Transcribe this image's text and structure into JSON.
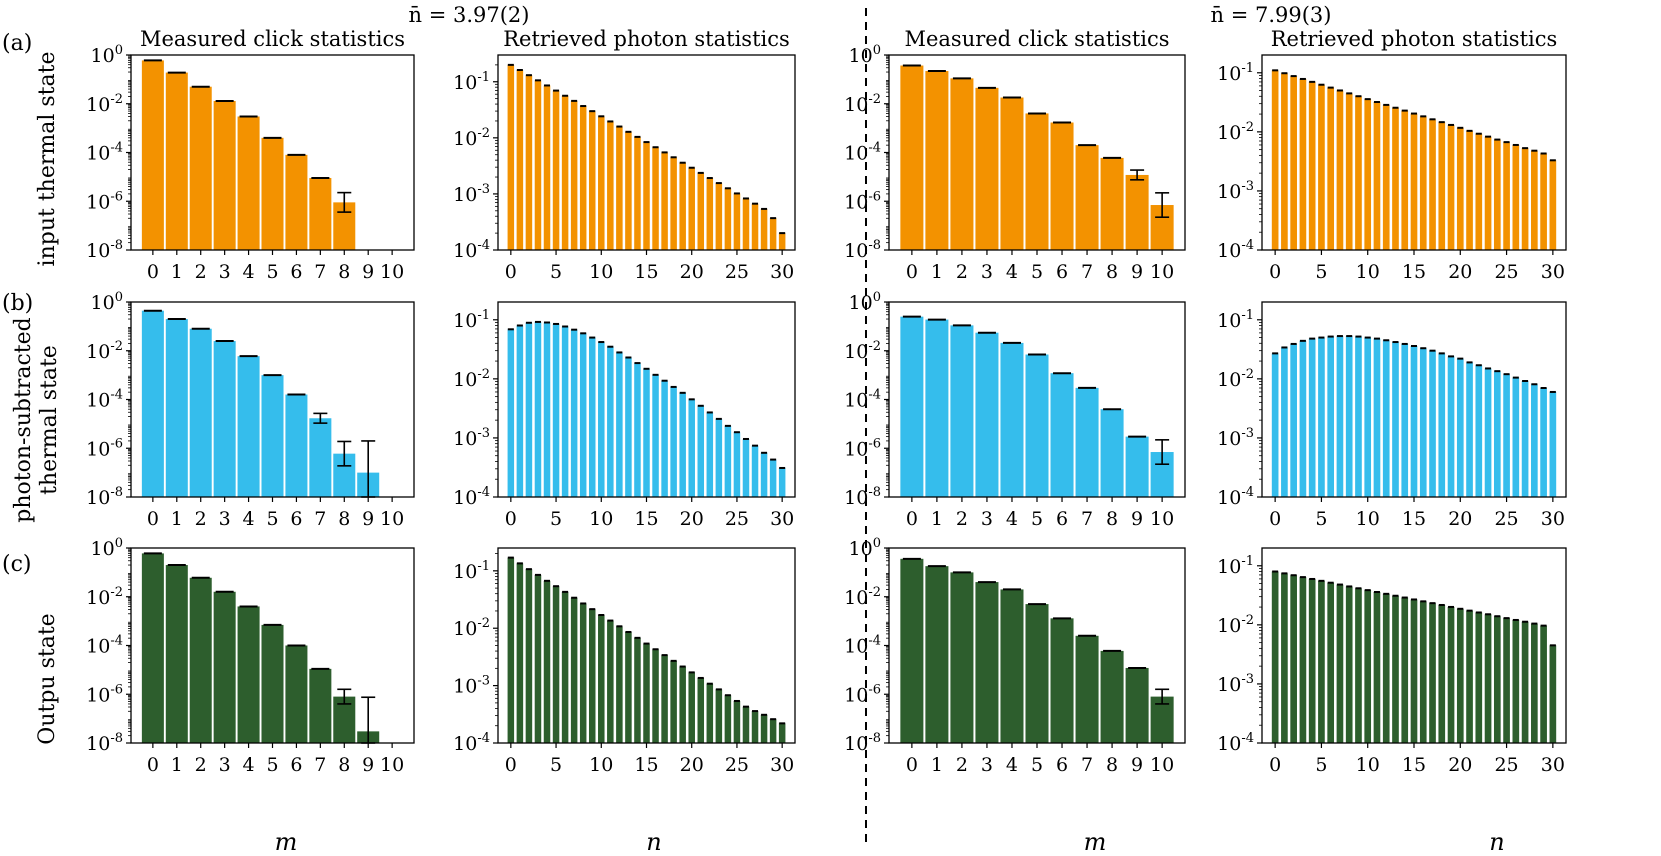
{
  "figure": {
    "top_titles": [
      "n̄ = 3.97(2)",
      "n̄ = 7.99(3)"
    ],
    "row_labels": [
      [
        "(a)"
      ],
      [
        "(b)"
      ],
      [
        "(c)"
      ]
    ],
    "ylabels": [
      [
        "input thermal state"
      ],
      [
        "photon-subtracted",
        "thermal state"
      ],
      [
        "Outpu state"
      ]
    ],
    "xlabels": [
      "m",
      "n",
      "m",
      "n"
    ],
    "colors": {
      "row0": "#F39200",
      "row1": "#35BDEC",
      "row2": "#2D5E2D"
    }
  },
  "chart_data": [
    {
      "id": "a-click-3.97",
      "type": "bar",
      "title": "Measured click statistics",
      "xlabel": "m",
      "ylabel": "input thermal state",
      "yscale": "log",
      "ylim": [
        1e-08,
        1
      ],
      "yticks": [
        1,
        0.01,
        0.0001,
        1e-06,
        1e-08
      ],
      "ytick_labels": [
        "10^0",
        "10^-2",
        "10^-4",
        "10^-6",
        "10^-8"
      ],
      "categories": [
        0,
        1,
        2,
        3,
        4,
        5,
        6,
        7,
        8,
        9,
        10
      ],
      "values": [
        0.6,
        0.19,
        0.05,
        0.013,
        0.003,
        0.0004,
        8e-05,
        9e-06,
        9e-07,
        null,
        null
      ],
      "errors": [
        0,
        0,
        0,
        0,
        0,
        0,
        0,
        0,
        0.4,
        0,
        0
      ]
    },
    {
      "id": "a-photon-3.97",
      "type": "bar",
      "title": "Retrieved photon statistics",
      "xlabel": "n",
      "yscale": "log",
      "ylim": [
        0.0001,
        0.3
      ],
      "yticks": [
        0.1,
        0.01,
        0.001,
        0.0001
      ],
      "ytick_labels": [
        "10^-1",
        "10^-2",
        "10^-3",
        "10^-4"
      ],
      "xticks": [
        0,
        5,
        10,
        15,
        20,
        25,
        30
      ],
      "categories": [
        0,
        1,
        2,
        3,
        4,
        5,
        6,
        7,
        8,
        9,
        10,
        11,
        12,
        13,
        14,
        15,
        16,
        17,
        18,
        19,
        20,
        21,
        22,
        23,
        24,
        25,
        26,
        27,
        28,
        29,
        30
      ],
      "values": [
        0.2,
        0.162,
        0.131,
        0.106,
        0.0859,
        0.0696,
        0.0563,
        0.0456,
        0.0369,
        0.0299,
        0.0242,
        0.0196,
        0.0159,
        0.0128,
        0.0104,
        0.0084,
        0.0068,
        0.0055,
        0.0045,
        0.0036,
        0.00293,
        0.00237,
        0.00192,
        0.00156,
        0.00126,
        0.00102,
        0.00083,
        0.00067,
        0.00054,
        0.00037,
        0.0002
      ]
    },
    {
      "id": "a-click-7.99",
      "type": "bar",
      "title": "Measured click statistics",
      "xlabel": "m",
      "yscale": "log",
      "ylim": [
        1e-08,
        1
      ],
      "yticks": [
        1,
        0.01,
        0.0001,
        1e-06,
        1e-08
      ],
      "ytick_labels": [
        "10^0",
        "10^-2",
        "10^-4",
        "10^-6",
        "10^-8"
      ],
      "categories": [
        0,
        1,
        2,
        3,
        4,
        5,
        6,
        7,
        8,
        9,
        10
      ],
      "values": [
        0.37,
        0.22,
        0.11,
        0.045,
        0.018,
        0.004,
        0.0017,
        0.0002,
        6e-05,
        1.2e-05,
        7e-07
      ],
      "errors": [
        0,
        0,
        0,
        0,
        0,
        0,
        0,
        0,
        0,
        0.2,
        0.5
      ]
    },
    {
      "id": "a-photon-7.99",
      "type": "bar",
      "title": "Retrieved photon statistics",
      "xlabel": "n",
      "yscale": "log",
      "ylim": [
        0.0001,
        0.2
      ],
      "yticks": [
        0.1,
        0.01,
        0.001,
        0.0001
      ],
      "ytick_labels": [
        "10^-1",
        "10^-2",
        "10^-3",
        "10^-4"
      ],
      "xticks": [
        0,
        5,
        10,
        15,
        20,
        25,
        30
      ],
      "categories": [
        0,
        1,
        2,
        3,
        4,
        5,
        6,
        7,
        8,
        9,
        10,
        11,
        12,
        13,
        14,
        15,
        16,
        17,
        18,
        19,
        20,
        21,
        22,
        23,
        24,
        25,
        26,
        27,
        28,
        29,
        30
      ],
      "values": [
        0.11,
        0.0983,
        0.0879,
        0.0786,
        0.0702,
        0.0628,
        0.0561,
        0.0502,
        0.0448,
        0.0401,
        0.0358,
        0.032,
        0.0286,
        0.0256,
        0.0229,
        0.0204,
        0.0183,
        0.0163,
        0.0146,
        0.0131,
        0.0117,
        0.0104,
        0.0093,
        0.0083,
        0.0074,
        0.0067,
        0.006,
        0.0053,
        0.0048,
        0.0043,
        0.0033
      ]
    },
    {
      "id": "b-click-3.97",
      "type": "bar",
      "title": "",
      "xlabel": "m",
      "ylabel": "photon-subtracted thermal state",
      "yscale": "log",
      "ylim": [
        1e-08,
        1
      ],
      "yticks": [
        1,
        0.01,
        0.0001,
        1e-06,
        1e-08
      ],
      "ytick_labels": [
        "10^0",
        "10^-2",
        "10^-4",
        "10^-6",
        "10^-8"
      ],
      "categories": [
        0,
        1,
        2,
        3,
        4,
        5,
        6,
        7,
        8,
        9,
        10
      ],
      "values": [
        0.44,
        0.2,
        0.08,
        0.025,
        0.006,
        0.001,
        0.00016,
        1.7e-05,
        6e-07,
        1e-07,
        null
      ],
      "errors": [
        0,
        0,
        0,
        0,
        0,
        0,
        0,
        0.2,
        0.5,
        1.3,
        0
      ]
    },
    {
      "id": "b-photon-3.97",
      "type": "bar",
      "title": "",
      "xlabel": "n",
      "yscale": "log",
      "ylim": [
        0.0001,
        0.2
      ],
      "yticks": [
        0.1,
        0.01,
        0.001,
        0.0001
      ],
      "ytick_labels": [
        "10^-1",
        "10^-2",
        "10^-3",
        "10^-4"
      ],
      "xticks": [
        0,
        5,
        10,
        15,
        20,
        25,
        30
      ],
      "categories": [
        0,
        1,
        2,
        3,
        4,
        5,
        6,
        7,
        8,
        9,
        10,
        11,
        12,
        13,
        14,
        15,
        16,
        17,
        18,
        19,
        20,
        21,
        22,
        23,
        24,
        25,
        26,
        27,
        28,
        29,
        30
      ],
      "values": [
        0.069,
        0.08,
        0.089,
        0.092,
        0.09,
        0.085,
        0.077,
        0.068,
        0.059,
        0.05,
        0.042,
        0.035,
        0.028,
        0.023,
        0.0185,
        0.0148,
        0.0117,
        0.0093,
        0.0073,
        0.0058,
        0.0045,
        0.0035,
        0.0027,
        0.0021,
        0.0016,
        0.00125,
        0.00096,
        0.00074,
        0.00056,
        0.00043,
        0.00031
      ]
    },
    {
      "id": "b-click-7.99",
      "type": "bar",
      "title": "",
      "xlabel": "m",
      "yscale": "log",
      "ylim": [
        1e-08,
        1
      ],
      "yticks": [
        1,
        0.01,
        0.0001,
        1e-06,
        1e-08
      ],
      "ytick_labels": [
        "10^0",
        "10^-2",
        "10^-4",
        "10^-6",
        "10^-8"
      ],
      "categories": [
        0,
        1,
        2,
        3,
        4,
        5,
        6,
        7,
        8,
        9,
        10
      ],
      "values": [
        0.25,
        0.19,
        0.11,
        0.055,
        0.021,
        0.007,
        0.0012,
        0.0003,
        4e-05,
        3e-06,
        7e-07
      ],
      "errors": [
        0,
        0,
        0,
        0,
        0,
        0,
        0,
        0,
        0,
        0,
        0.5
      ]
    },
    {
      "id": "b-photon-7.99",
      "type": "bar",
      "title": "",
      "xlabel": "n",
      "yscale": "log",
      "ylim": [
        0.0001,
        0.2
      ],
      "yticks": [
        0.1,
        0.01,
        0.001,
        0.0001
      ],
      "ytick_labels": [
        "10^-1",
        "10^-2",
        "10^-3",
        "10^-4"
      ],
      "xticks": [
        0,
        5,
        10,
        15,
        20,
        25,
        30
      ],
      "categories": [
        0,
        1,
        2,
        3,
        4,
        5,
        6,
        7,
        8,
        9,
        10,
        11,
        12,
        13,
        14,
        15,
        16,
        17,
        18,
        19,
        20,
        21,
        22,
        23,
        24,
        25,
        26,
        27,
        28,
        29,
        30
      ],
      "values": [
        0.027,
        0.034,
        0.039,
        0.044,
        0.048,
        0.05,
        0.052,
        0.053,
        0.053,
        0.052,
        0.05,
        0.048,
        0.045,
        0.042,
        0.039,
        0.036,
        0.033,
        0.03,
        0.027,
        0.024,
        0.022,
        0.019,
        0.017,
        0.015,
        0.0135,
        0.012,
        0.0105,
        0.0092,
        0.0081,
        0.007,
        0.006
      ]
    },
    {
      "id": "c-click-3.97",
      "type": "bar",
      "title": "",
      "xlabel": "m",
      "ylabel": "Outpu state",
      "yscale": "log",
      "ylim": [
        1e-08,
        1
      ],
      "yticks": [
        1,
        0.01,
        0.0001,
        1e-06,
        1e-08
      ],
      "ytick_labels": [
        "10^0",
        "10^-2",
        "10^-4",
        "10^-6",
        "10^-8"
      ],
      "categories": [
        0,
        1,
        2,
        3,
        4,
        5,
        6,
        7,
        8,
        9,
        10
      ],
      "values": [
        0.6,
        0.2,
        0.06,
        0.016,
        0.004,
        0.0007,
        0.0001,
        1.1e-05,
        8e-07,
        3e-08,
        null
      ],
      "errors": [
        0,
        0,
        0,
        0,
        0,
        0,
        0,
        0,
        0.3,
        1.4,
        0
      ]
    },
    {
      "id": "c-photon-3.97",
      "type": "bar",
      "title": "",
      "xlabel": "n",
      "yscale": "log",
      "ylim": [
        0.0001,
        0.25
      ],
      "yticks": [
        0.1,
        0.01,
        0.001,
        0.0001
      ],
      "ytick_labels": [
        "10^-1",
        "10^-2",
        "10^-3",
        "10^-4"
      ],
      "xticks": [
        0,
        5,
        10,
        15,
        20,
        25,
        30
      ],
      "categories": [
        0,
        1,
        2,
        3,
        4,
        5,
        6,
        7,
        8,
        9,
        10,
        11,
        12,
        13,
        14,
        15,
        16,
        17,
        18,
        19,
        20,
        21,
        22,
        23,
        24,
        25,
        26,
        27,
        28,
        29,
        30
      ],
      "values": [
        0.17,
        0.135,
        0.107,
        0.085,
        0.067,
        0.054,
        0.043,
        0.034,
        0.027,
        0.0215,
        0.017,
        0.0136,
        0.0108,
        0.0086,
        0.0068,
        0.0054,
        0.0043,
        0.0034,
        0.0027,
        0.00215,
        0.0017,
        0.00136,
        0.00108,
        0.00086,
        0.00068,
        0.00054,
        0.00043,
        0.00036,
        0.00031,
        0.00026,
        0.00022
      ]
    },
    {
      "id": "c-click-7.99",
      "type": "bar",
      "title": "",
      "xlabel": "m",
      "yscale": "log",
      "ylim": [
        1e-08,
        1
      ],
      "yticks": [
        1,
        0.01,
        0.0001,
        1e-06,
        1e-08
      ],
      "ytick_labels": [
        "10^0",
        "10^-2",
        "10^-4",
        "10^-6",
        "10^-8"
      ],
      "categories": [
        0,
        1,
        2,
        3,
        4,
        5,
        6,
        7,
        8,
        9,
        10
      ],
      "values": [
        0.36,
        0.18,
        0.1,
        0.04,
        0.02,
        0.005,
        0.0013,
        0.00025,
        6e-05,
        1.2e-05,
        8e-07
      ],
      "errors": [
        0,
        0,
        0,
        0,
        0,
        0,
        0,
        0,
        0,
        0,
        0.3
      ]
    },
    {
      "id": "c-photon-7.99",
      "type": "bar",
      "title": "",
      "xlabel": "n",
      "yscale": "log",
      "ylim": [
        0.0001,
        0.2
      ],
      "yticks": [
        0.1,
        0.01,
        0.001,
        0.0001
      ],
      "ytick_labels": [
        "10^-1",
        "10^-2",
        "10^-3",
        "10^-4"
      ],
      "xticks": [
        0,
        5,
        10,
        15,
        20,
        25,
        30
      ],
      "categories": [
        0,
        1,
        2,
        3,
        4,
        5,
        6,
        7,
        8,
        9,
        10,
        11,
        12,
        13,
        14,
        15,
        16,
        17,
        18,
        19,
        20,
        21,
        22,
        23,
        24,
        25,
        26,
        27,
        28,
        29,
        30
      ],
      "values": [
        0.08,
        0.0744,
        0.0692,
        0.0643,
        0.0598,
        0.0556,
        0.0517,
        0.0481,
        0.0447,
        0.0416,
        0.0387,
        0.036,
        0.0335,
        0.0311,
        0.029,
        0.0269,
        0.025,
        0.0233,
        0.0217,
        0.0201,
        0.0187,
        0.0174,
        0.0162,
        0.0151,
        0.014,
        0.013,
        0.0121,
        0.0113,
        0.0105,
        0.0097,
        0.0045
      ]
    }
  ]
}
